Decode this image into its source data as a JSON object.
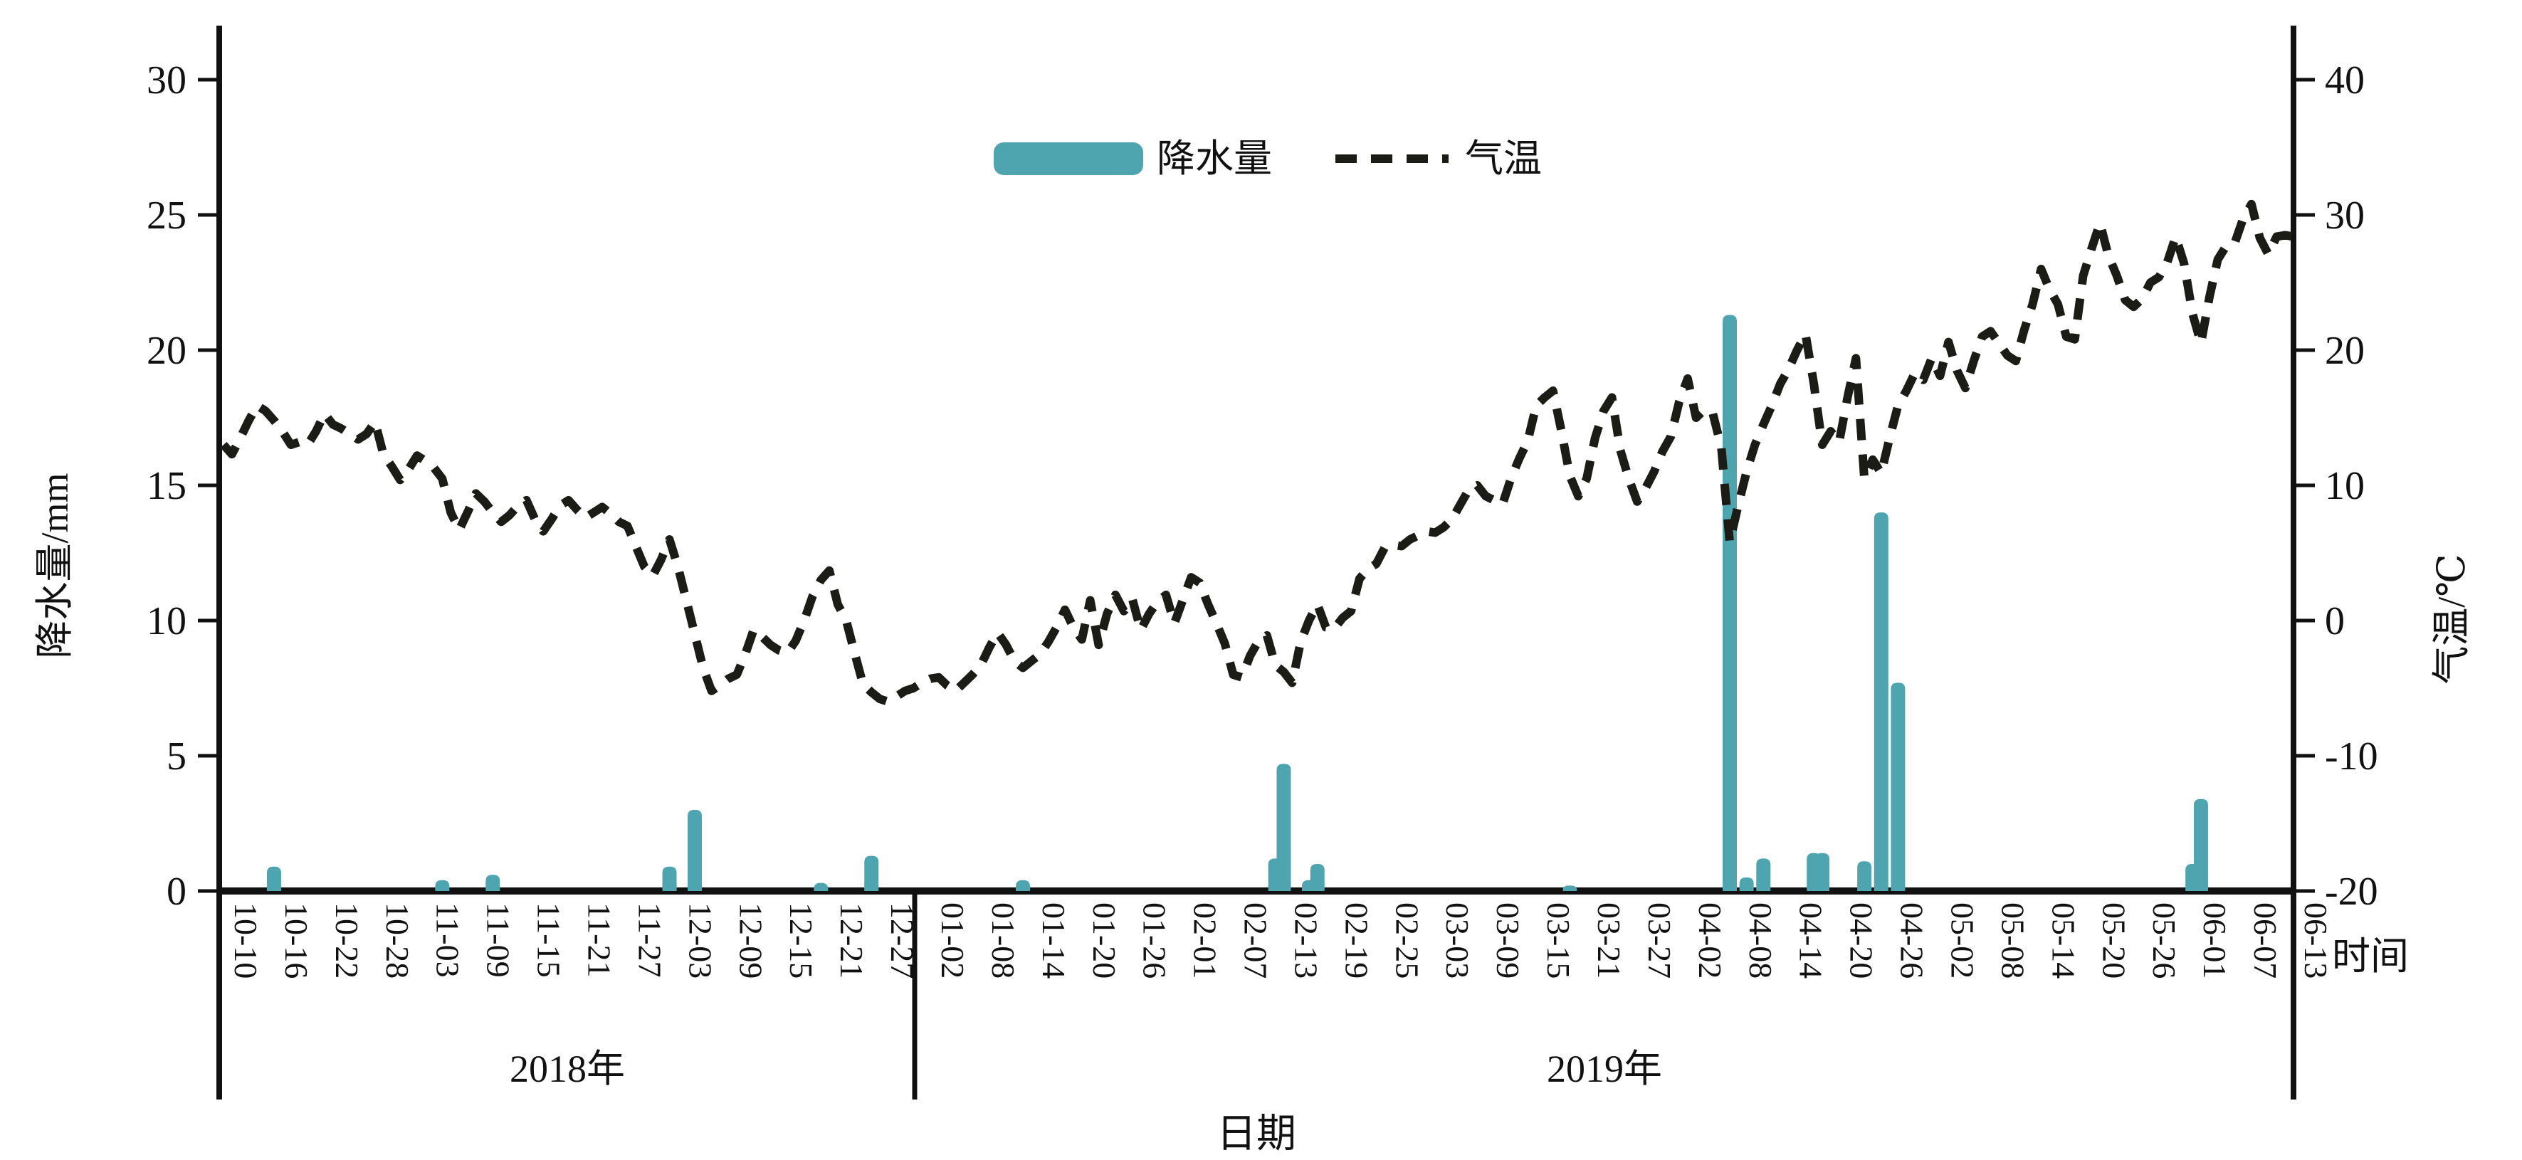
{
  "legend": {
    "precip_label": "降水量",
    "temp_label": "气温"
  },
  "axes": {
    "y_left_title": "降水量/mm",
    "y_right_title": "气温/℃",
    "x_title": "日期",
    "x_unit_note": "时间",
    "year_left": "2018年",
    "year_right": "2019年"
  },
  "colors": {
    "bar": "#4FA5AF",
    "line": "#1C1C16"
  },
  "chart_data": {
    "type": "combo",
    "title": "",
    "legend_position": "top-center",
    "x_axis": {
      "label": "日期",
      "unit_note": "时间",
      "start_date": "2018-10-10",
      "end_date": "2019-06-13",
      "tick_interval_days": 6,
      "year_sections": [
        "2018年",
        "2019年"
      ],
      "tick_labels": [
        "10-10",
        "10-16",
        "10-22",
        "10-28",
        "11-03",
        "11-09",
        "11-15",
        "11-21",
        "11-27",
        "12-03",
        "12-09",
        "12-15",
        "12-21",
        "12-27",
        "01-02",
        "01-08",
        "01-14",
        "01-20",
        "01-26",
        "02-01",
        "02-07",
        "02-13",
        "02-19",
        "02-25",
        "03-03",
        "03-09",
        "03-15",
        "03-21",
        "03-27",
        "04-02",
        "04-08",
        "04-14",
        "04-20",
        "04-26",
        "05-02",
        "05-08",
        "05-14",
        "05-20",
        "05-26",
        "06-01",
        "06-07",
        "06-13"
      ]
    },
    "y_left": {
      "label": "降水量/mm",
      "range": [
        0,
        30
      ],
      "ticks": [
        30,
        25,
        20,
        15,
        10,
        5,
        0
      ]
    },
    "y_right": {
      "label": "气温/℃",
      "range": [
        -20,
        40
      ],
      "ticks": [
        40,
        30,
        20,
        10,
        0,
        -10,
        -20
      ]
    },
    "series": [
      {
        "name": "降水量",
        "type": "bar",
        "axis": "left",
        "unit": "mm",
        "color": "#4FA5AF",
        "points": [
          {
            "date": "10-16",
            "day": 6,
            "value": 0.9
          },
          {
            "date": "11-05",
            "day": 26,
            "value": 0.4
          },
          {
            "date": "11-11",
            "day": 32,
            "value": 0.6
          },
          {
            "date": "12-02",
            "day": 53,
            "value": 0.9
          },
          {
            "date": "12-05",
            "day": 56,
            "value": 3.0
          },
          {
            "date": "12-20",
            "day": 71,
            "value": 0.3
          },
          {
            "date": "12-26",
            "day": 77,
            "value": 1.3
          },
          {
            "date": "01-13",
            "day": 95,
            "value": 0.4
          },
          {
            "date": "02-12",
            "day": 125,
            "value": 1.2
          },
          {
            "date": "02-13",
            "day": 126,
            "value": 4.7
          },
          {
            "date": "02-16",
            "day": 129,
            "value": 0.4
          },
          {
            "date": "02-17",
            "day": 130,
            "value": 1.0
          },
          {
            "date": "03-19",
            "day": 160,
            "value": 0.2
          },
          {
            "date": "04-07",
            "day": 179,
            "value": 21.3
          },
          {
            "date": "04-09",
            "day": 181,
            "value": 0.5
          },
          {
            "date": "04-11",
            "day": 183,
            "value": 1.2
          },
          {
            "date": "04-17",
            "day": 189,
            "value": 1.4
          },
          {
            "date": "04-18",
            "day": 190,
            "value": 1.4
          },
          {
            "date": "04-23",
            "day": 195,
            "value": 1.1
          },
          {
            "date": "04-25",
            "day": 197,
            "value": 14.0
          },
          {
            "date": "04-27",
            "day": 199,
            "value": 7.7
          },
          {
            "date": "06-01",
            "day": 234,
            "value": 1.0
          },
          {
            "date": "06-02",
            "day": 235,
            "value": 3.4
          }
        ]
      },
      {
        "name": "气温",
        "type": "line",
        "style": "dashed",
        "axis": "right",
        "unit": "°C",
        "color": "#1C1C16",
        "start_date": "2018-10-10",
        "daily_values": [
          13.0,
          12.3,
          13.5,
          14.8,
          15.9,
          15.5,
          14.8,
          14.0,
          13.0,
          13.2,
          13.0,
          14.0,
          15.3,
          14.5,
          14.2,
          13.8,
          13.4,
          13.8,
          14.7,
          12.3,
          11.4,
          10.4,
          11.2,
          12.2,
          11.8,
          11.3,
          10.5,
          8.0,
          6.7,
          8.0,
          9.4,
          8.8,
          8.0,
          7.3,
          7.8,
          8.5,
          8.9,
          7.5,
          6.6,
          7.5,
          8.5,
          8.9,
          8.2,
          7.6,
          8.0,
          8.4,
          7.9,
          7.3,
          7.0,
          5.5,
          4.0,
          3.3,
          4.5,
          6.0,
          4.0,
          1.5,
          -1.0,
          -3.5,
          -5.2,
          -4.8,
          -4.3,
          -4.0,
          -2.5,
          -0.7,
          -1.2,
          -1.8,
          -2.2,
          -2.4,
          -1.5,
          0.0,
          1.8,
          3.0,
          3.7,
          1.2,
          0.0,
          -2.4,
          -4.7,
          -5.3,
          -5.8,
          -6.0,
          -5.6,
          -5.2,
          -5.0,
          -4.6,
          -4.3,
          -4.2,
          -4.8,
          -5.2,
          -4.6,
          -4.0,
          -3.3,
          -2.0,
          -0.9,
          -1.8,
          -3.0,
          -3.5,
          -3.0,
          -2.5,
          -1.6,
          -0.5,
          0.8,
          -0.5,
          -1.4,
          1.5,
          -1.8,
          0.5,
          1.9,
          0.7,
          1.6,
          -0.7,
          0.5,
          1.4,
          1.9,
          -0.2,
          1.5,
          3.2,
          2.8,
          1.2,
          -0.2,
          -1.7,
          -4.0,
          -4.2,
          -2.6,
          -1.5,
          -1.1,
          -3.3,
          -3.8,
          -4.6,
          -1.6,
          0.0,
          1.2,
          -0.5,
          -0.6,
          0.2,
          0.7,
          3.1,
          3.8,
          4.2,
          5.4,
          5.6,
          5.5,
          6.0,
          6.3,
          6.6,
          6.5,
          6.9,
          7.5,
          8.6,
          9.7,
          10.0,
          9.2,
          8.9,
          8.6,
          10.5,
          12.0,
          13.3,
          15.9,
          16.5,
          17.0,
          14.0,
          10.7,
          9.2,
          10.5,
          13.5,
          15.5,
          16.5,
          12.6,
          10.5,
          8.8,
          9.8,
          11.0,
          12.5,
          13.6,
          16.2,
          17.9,
          15.0,
          15.6,
          15.3,
          12.8,
          5.8,
          8.5,
          11.0,
          13.0,
          14.5,
          15.9,
          17.5,
          18.6,
          20.0,
          21.2,
          17.5,
          13.0,
          14.0,
          13.2,
          16.5,
          19.4,
          10.5,
          11.9,
          10.9,
          13.5,
          15.9,
          17.0,
          18.3,
          17.8,
          19.4,
          18.1,
          20.6,
          18.5,
          17.2,
          19.2,
          21.0,
          21.4,
          20.5,
          19.6,
          19.2,
          21.5,
          23.4,
          26.0,
          24.5,
          23.4,
          21.0,
          20.8,
          25.5,
          27.5,
          29.4,
          27.0,
          25.5,
          23.7,
          23.2,
          23.8,
          25.0,
          25.4,
          26.5,
          28.4,
          26.4,
          22.7,
          20.5,
          23.9,
          26.7,
          27.7,
          27.9,
          29.7,
          30.8,
          28.3,
          27.1,
          28.4,
          28.5,
          28.4
        ]
      }
    ]
  }
}
